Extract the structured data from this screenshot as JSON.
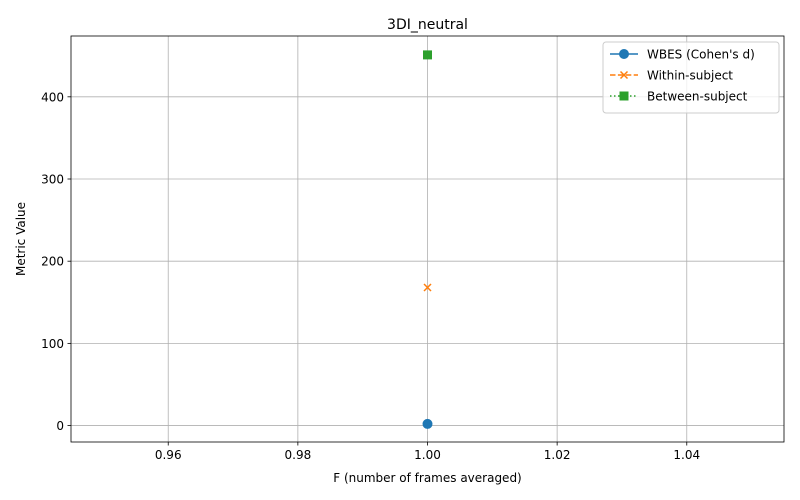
{
  "chart_data": {
    "type": "line",
    "title": "3DI_neutral",
    "xlabel": "F (number of frames averaged)",
    "ylabel": "Metric Value",
    "xlim": [
      0.945,
      1.055
    ],
    "ylim": [
      -20,
      474
    ],
    "xticks": [
      0.96,
      0.98,
      1.0,
      1.02,
      1.04
    ],
    "xtick_labels": [
      "0.96",
      "0.98",
      "1.00",
      "1.02",
      "1.04"
    ],
    "yticks": [
      0,
      100,
      200,
      300,
      400
    ],
    "ytick_labels": [
      "0",
      "100",
      "200",
      "300",
      "400"
    ],
    "grid": true,
    "legend_position": "top-right",
    "series": [
      {
        "name": "WBES (Cohen's d)",
        "x": [
          1.0
        ],
        "y": [
          2
        ],
        "color": "#1f77b4",
        "marker": "circle",
        "linestyle": "solid"
      },
      {
        "name": "Within-subject",
        "x": [
          1.0
        ],
        "y": [
          168
        ],
        "color": "#ff7f0e",
        "marker": "x",
        "linestyle": "dashed"
      },
      {
        "name": "Between-subject",
        "x": [
          1.0
        ],
        "y": [
          451
        ],
        "color": "#2ca02c",
        "marker": "square",
        "linestyle": "dotted"
      }
    ]
  }
}
